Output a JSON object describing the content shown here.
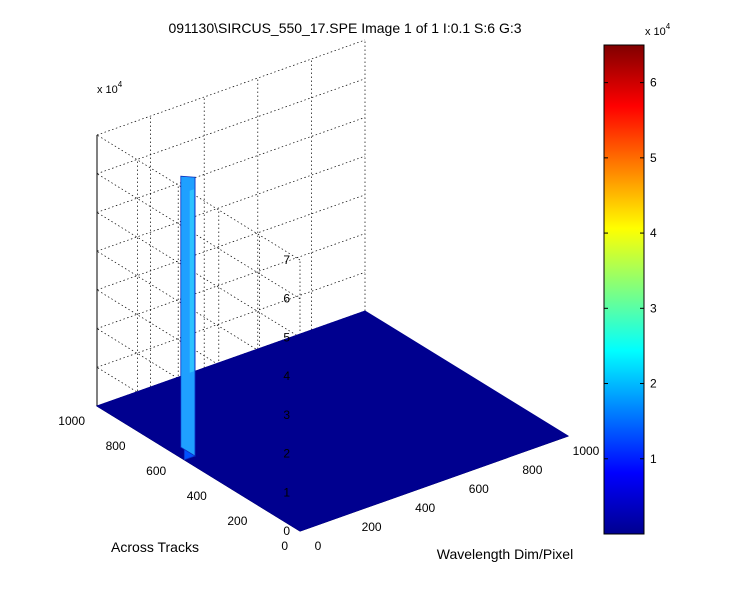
{
  "chart_data": {
    "type": "surface",
    "title": "091130\\SIRCUS_550_17.SPE  Image 1 of 1  I:0.1  S:6  G:3",
    "xlabel": "Wavelength Dim/Pixel",
    "ylabel": "Across Tracks",
    "zlabel": "",
    "x_range": [
      0,
      1000
    ],
    "y_range": [
      0,
      1000
    ],
    "z_range": [
      0,
      70000
    ],
    "x_ticks": [
      "0",
      "200",
      "400",
      "600",
      "800",
      "1000"
    ],
    "y_ticks": [
      "0",
      "200",
      "400",
      "600",
      "800",
      "1000"
    ],
    "z_ticks": [
      "0",
      "1",
      "2",
      "3",
      "4",
      "5",
      "6",
      "7"
    ],
    "z_exponent_label": "x 10",
    "z_exponent_power": "4",
    "grid": true,
    "baseline_value": 0,
    "peak": {
      "x_range": [
        0,
        40
      ],
      "y_range": [
        570,
        640
      ],
      "z_top": 72000,
      "z_base_inner": 22000
    },
    "colorbar": {
      "colormap": "jet",
      "range": [
        0,
        65000
      ],
      "ticks": [
        "1",
        "2",
        "3",
        "4",
        "5",
        "6"
      ],
      "exponent_label": "x 10",
      "exponent_power": "4"
    }
  }
}
